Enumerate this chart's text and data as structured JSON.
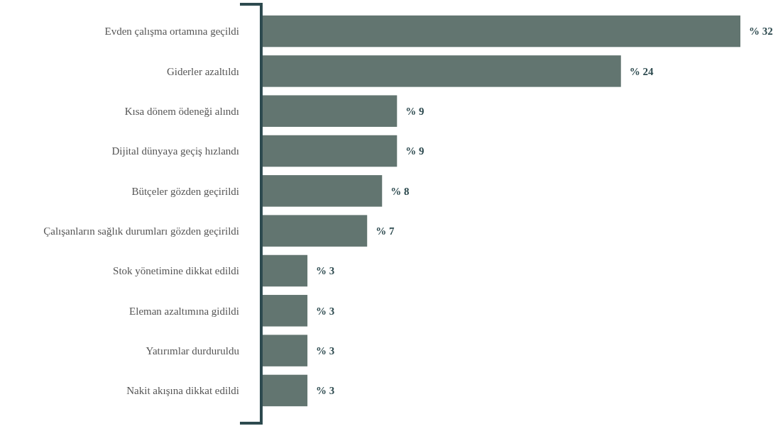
{
  "chart_data": {
    "type": "bar",
    "orientation": "horizontal",
    "categories": [
      "Evden çalışma ortamına geçildi",
      "Giderler azaltıldı",
      "Kısa dönem ödeneği alındı",
      "Dijital dünyaya geçiş hızlandı",
      "Bütçeler gözden geçirildi",
      "Çalışanların sağlık durumları gözden geçirildi",
      "Stok yönetimine dikkat edildi",
      "Eleman azaltımına gidildi",
      "Yatırımlar durduruldu",
      "Nakit akışına dikkat edildi"
    ],
    "values": [
      32,
      24,
      9,
      9,
      8,
      7,
      3,
      3,
      3,
      3
    ],
    "value_labels": [
      "% 32",
      "% 24",
      "% 9",
      "% 9",
      "% 8",
      "% 7",
      "% 3",
      "% 3",
      "% 3",
      "% 3"
    ],
    "color": "#627570"
  }
}
